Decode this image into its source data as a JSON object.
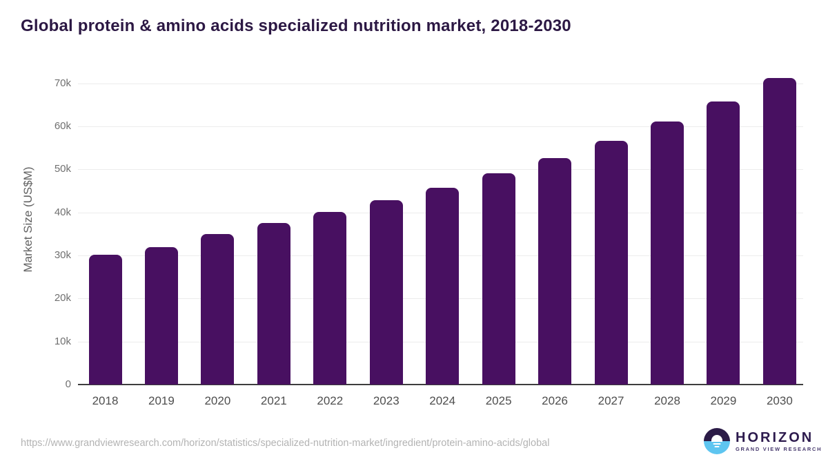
{
  "title": "Global protein & amino acids specialized nutrition market, 2018-2030",
  "chart_data": {
    "type": "bar",
    "title": "Global protein & amino acids specialized nutrition market, 2018-2030",
    "categories": [
      "2018",
      "2019",
      "2020",
      "2021",
      "2022",
      "2023",
      "2024",
      "2025",
      "2026",
      "2027",
      "2028",
      "2029",
      "2030"
    ],
    "values": [
      30100,
      32000,
      34900,
      37600,
      40100,
      42800,
      45700,
      49100,
      52600,
      56600,
      61200,
      65800,
      71300
    ],
    "xlabel": "",
    "ylabel": "Market Size (US$M)",
    "ylim": [
      0,
      70000
    ],
    "ytick_step": 10000,
    "ytick_labels": [
      "0",
      "10k",
      "20k",
      "30k",
      "40k",
      "50k",
      "60k",
      "70k"
    ],
    "grid": true,
    "legend_position": "none",
    "bar_color": "#481061"
  },
  "footer": {
    "source_url": "https://www.grandviewresearch.com/horizon/statistics/specialized-nutrition-market/ingredient/protein-amino-acids/global",
    "logo": {
      "name": "HORIZON",
      "subtitle": "GRAND VIEW RESEARCH"
    }
  },
  "colors": {
    "bar": "#481061",
    "title_text": "#2c1844",
    "gridline": "#ececec",
    "axis_line": "#3d3d3d",
    "y_tick_text": "#707070",
    "x_tick_text": "#4e4e4e",
    "url_text": "#b3b3b3",
    "logo_dark": "#2b1b47",
    "logo_blue": "#5ec5f0"
  }
}
